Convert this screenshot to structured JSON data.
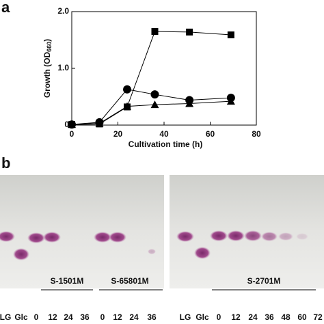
{
  "panels": [
    "a",
    "b"
  ],
  "chart_data": {
    "type": "line",
    "xlabel": "Cultivation time (h)",
    "ylabel": [
      "Growth (OD",
      "660",
      ")"
    ],
    "x": [
      0,
      12,
      24,
      36,
      51,
      69
    ],
    "series": [
      {
        "marker": "square",
        "color": "#000000",
        "values": [
          0.01,
          0.02,
          0.32,
          1.65,
          1.64,
          1.59
        ]
      },
      {
        "marker": "circle",
        "color": "#000000",
        "values": [
          0.01,
          0.05,
          0.63,
          0.54,
          0.44,
          0.48
        ]
      },
      {
        "marker": "triangle",
        "color": "#000000",
        "values": [
          0.01,
          0.03,
          0.33,
          0.36,
          0.38,
          0.42
        ]
      }
    ],
    "xlim": [
      0,
      80
    ],
    "xticks": [
      0,
      20,
      40,
      60,
      80
    ],
    "ylim": [
      0,
      2
    ],
    "yticks": [
      0,
      {
        "value": 1,
        "label": "1.0"
      },
      {
        "value": 2,
        "label": "2.0"
      }
    ]
  },
  "tlc": {
    "samples": [
      "S-1501M",
      "S-65801M",
      "S-2701M"
    ],
    "left_lanes": [
      "LG",
      "Glc",
      "0",
      "12",
      "24",
      "36",
      "0",
      "12",
      "24",
      "36"
    ],
    "right_lanes": [
      "LG",
      "Glc",
      "0",
      "12",
      "24",
      "36",
      "48",
      "60",
      "72"
    ]
  }
}
